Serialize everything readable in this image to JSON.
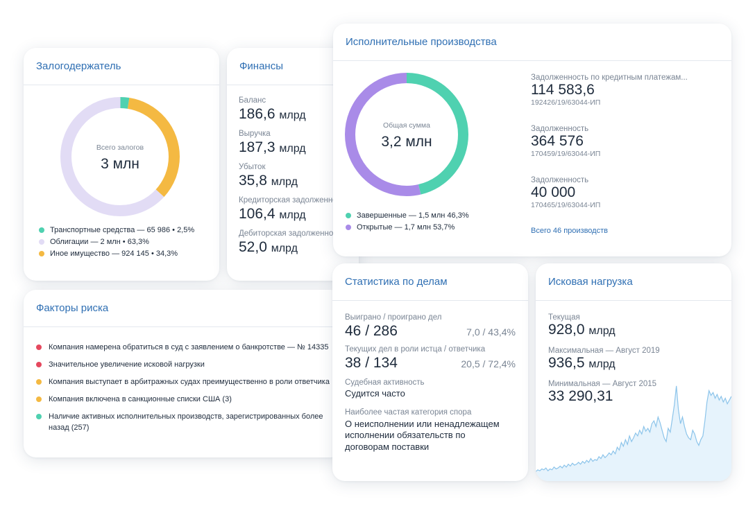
{
  "pledge": {
    "title": "Залогодержатель",
    "donut_label": "Всего залогов",
    "donut_value": "3 млн",
    "legend": [
      {
        "text": "Транспортные средства — 65 986 • 2,5%",
        "color": "#4fd1b0",
        "percent": 2.5
      },
      {
        "text": "Облигации — 2 млн • 63,3%",
        "color": "#e2dcf5",
        "percent": 63.3
      },
      {
        "text": "Иное имущество — 924 145 • 34,3%",
        "color": "#f4b942",
        "percent": 34.3
      }
    ]
  },
  "finance": {
    "title": "Финансы",
    "items": [
      {
        "label": "Баланс",
        "value": "186,6",
        "unit": "млрд"
      },
      {
        "label": "Выручка",
        "value": "187,3",
        "unit": "млрд"
      },
      {
        "label": "Убыток",
        "value": "35,8",
        "unit": "млрд"
      },
      {
        "label": "Кредиторская задолженность",
        "value": "106,4",
        "unit": "млрд"
      },
      {
        "label": "Дебиторская задолженность",
        "value": "52,0",
        "unit": "млрд"
      }
    ]
  },
  "risk": {
    "title": "Факторы риска",
    "items": [
      {
        "text": "Компания намерена обратиться в суд с заявлением о банкротстве — № 14335",
        "color": "#e5485e"
      },
      {
        "text": "Значительное увеличение исковой нагрузки",
        "color": "#e5485e"
      },
      {
        "text": "Компания выступает в арбитражных судах преимущественно в роли ответчика",
        "color": "#f4b942"
      },
      {
        "text": "Компания включена в санкционные списки США (3)",
        "color": "#f4b942"
      },
      {
        "text": "Наличие активных исполнительных производств, зарегистрированных более",
        "text2": "назад (257)",
        "color": "#4fd1b0"
      }
    ]
  },
  "enforcement": {
    "title": "Исполнительные производства",
    "donut_label": "Общая сумма",
    "donut_value": "3,2 млн",
    "legend": [
      {
        "text": "Завершенные — 1,5 млн 46,3%",
        "color": "#4fd1b0",
        "percent": 46.3
      },
      {
        "text": "Открытые — 1,7 млн 53,7%",
        "color": "#a98be8",
        "percent": 53.7
      }
    ],
    "items": [
      {
        "label": "Задолженность по кредитным платежам...",
        "value": "114 583,6",
        "id": "192426/19/63044-ИП"
      },
      {
        "label": "Задолженность",
        "value": "364 576",
        "id": "170459/19/63044-ИП"
      },
      {
        "label": "Задолженность",
        "value": "40 000",
        "id": "170465/19/63044-ИП"
      }
    ],
    "link": "Всего 46 производств"
  },
  "stats": {
    "title": "Статистика по делам",
    "won_label": "Выиграно / проиграно дел",
    "won_value": "46 / 286",
    "won_extra": "7,0 / 43,4%",
    "role_label": "Текущих дел в роли истца / ответчика",
    "role_value": "38 / 134",
    "role_extra": "20,5 / 72,4%",
    "activity_label": "Судебная активность",
    "activity_value": "Судится часто",
    "category_label": "Наиболее частая категория спора",
    "category_value": "О неисполнении или ненадлежащем исполнении обязательств по договорам поставки"
  },
  "lawsuit": {
    "title": "Исковая нагрузка",
    "items": [
      {
        "label": "Текущая",
        "value": "928,0",
        "unit": "млрд"
      },
      {
        "label": "Максимальная — Август 2019",
        "value": "936,5",
        "unit": "млрд"
      },
      {
        "label": "Минимальная — Август 2015",
        "value": "33 290,31",
        "unit": ""
      }
    ],
    "chart_color": "#8cc4ea",
    "chart_fill": "#e6f3fc"
  },
  "chart_data": {
    "type": "area",
    "title": "Исковая нагрузка",
    "xlabel": "",
    "ylabel": "",
    "ylim": [
      0,
      100
    ],
    "values": [
      4,
      6,
      5,
      7,
      6,
      8,
      5,
      7,
      6,
      9,
      7,
      8,
      10,
      8,
      11,
      9,
      12,
      10,
      13,
      11,
      12,
      14,
      12,
      15,
      13,
      16,
      14,
      18,
      15,
      17,
      16,
      20,
      18,
      22,
      19,
      21,
      24,
      22,
      26,
      23,
      30,
      27,
      35,
      31,
      38,
      33,
      42,
      36,
      40,
      45,
      42,
      48,
      44,
      52,
      47,
      50,
      46,
      55,
      58,
      52,
      62,
      56,
      48,
      40,
      36,
      50,
      46,
      60,
      75,
      95,
      70,
      55,
      62,
      52,
      44,
      40,
      38,
      48,
      44,
      36,
      32,
      38,
      42,
      58,
      78,
      90,
      85,
      88,
      82,
      86,
      80,
      84,
      78,
      82,
      76,
      80,
      84
    ]
  }
}
